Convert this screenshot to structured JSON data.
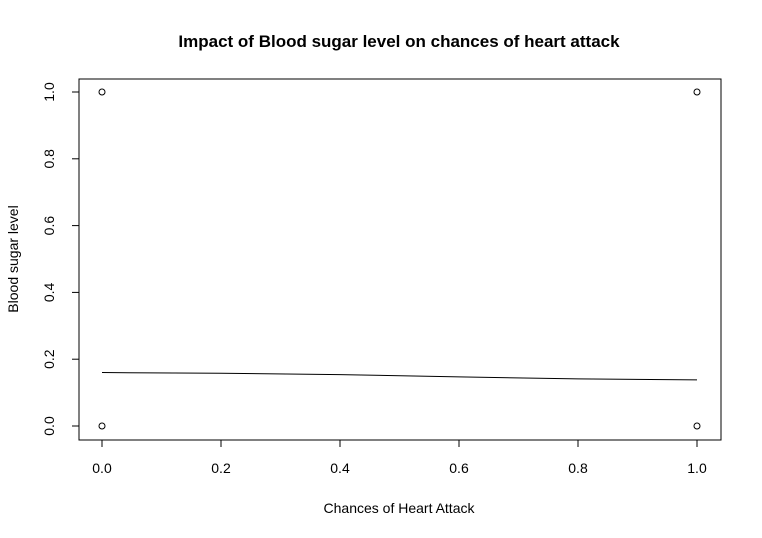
{
  "chart_data": {
    "type": "scatter",
    "title": "Impact of Blood sugar level on chances of heart attack",
    "xlabel": "Chances of Heart Attack",
    "ylabel": "Blood sugar level",
    "xlim": [
      0.0,
      1.0
    ],
    "ylim": [
      0.0,
      1.0
    ],
    "xticks": [
      "0.0",
      "0.2",
      "0.4",
      "0.6",
      "0.8",
      "1.0"
    ],
    "yticks": [
      "0.0",
      "0.2",
      "0.4",
      "0.6",
      "0.8",
      "1.0"
    ],
    "grid": false,
    "points": [
      {
        "x": 0.0,
        "y": 1.0
      },
      {
        "x": 0.0,
        "y": 0.0
      },
      {
        "x": 1.0,
        "y": 1.0
      },
      {
        "x": 1.0,
        "y": 0.0
      }
    ],
    "line": {
      "x": [
        0.0,
        0.2,
        0.4,
        0.6,
        0.8,
        1.0
      ],
      "y": [
        0.16,
        0.158,
        0.154,
        0.147,
        0.141,
        0.138
      ]
    }
  }
}
